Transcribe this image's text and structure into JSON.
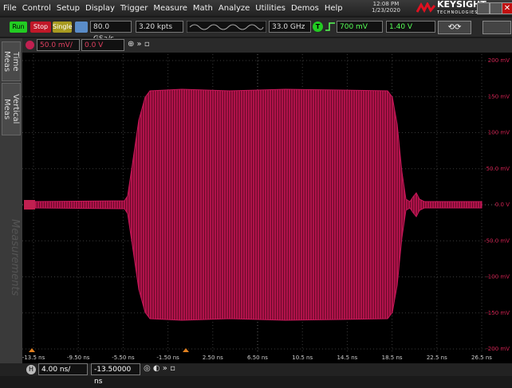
{
  "menu": [
    "File",
    "Control",
    "Setup",
    "Display",
    "Trigger",
    "Measure",
    "Math",
    "Analyze",
    "Utilities",
    "Demos",
    "Help"
  ],
  "clock": {
    "time": "12:08 PM",
    "date": "1/23/2020"
  },
  "brand": {
    "name": "KEYSIGHT",
    "sub": "TECHNOLOGIES"
  },
  "toolbar": {
    "run": "Run",
    "stop": "Stop",
    "single": "Single",
    "sample_rate": "80.0 GSa/s",
    "memory": "3.20 kpts",
    "bandwidth": "33.0 GHz",
    "trigger_icon": "T",
    "trigger_level": "700 mV",
    "trigger_value": "1.40 V"
  },
  "channel": {
    "scale": "50.0 mV/",
    "offset": "0.0 V"
  },
  "side_tabs": [
    "Time Meas",
    "Vertical Meas",
    "Measurements"
  ],
  "y_labels": [
    "200 mV",
    "150 mV",
    "100 mV",
    "50.0 mV",
    "0.0 V",
    "-50.0 mV",
    "-100 mV",
    "-150 mV",
    "-200 mV"
  ],
  "x_labels": [
    "-13.5 ns",
    "-9.50 ns",
    "-5.50 ns",
    "-1.50 ns",
    "2.50 ns",
    "6.50 ns",
    "10.5 ns",
    "14.5 ns",
    "18.5 ns",
    "22.5 ns",
    "26.5 ns"
  ],
  "timebase": {
    "icon": "H",
    "scale": "4.00 ns/",
    "position": "-13.50000 ns"
  }
}
